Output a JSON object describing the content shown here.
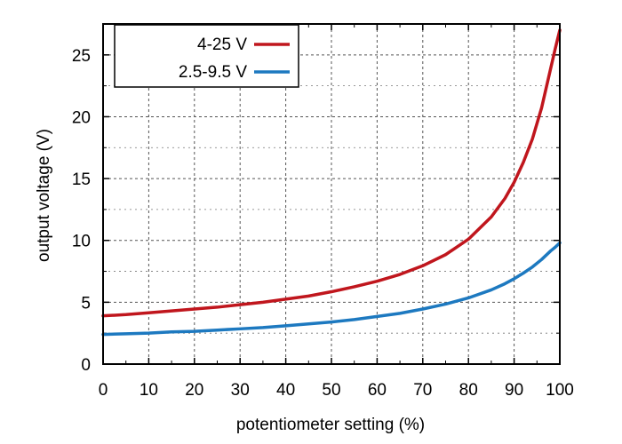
{
  "chart_data": {
    "type": "line",
    "xlabel": "potentiometer setting (%)",
    "ylabel": "output voltage (V)",
    "xlim": [
      0,
      100
    ],
    "ylim": [
      0,
      27.5
    ],
    "xticks": [
      0,
      10,
      20,
      30,
      40,
      50,
      60,
      70,
      80,
      90,
      100
    ],
    "yticks": [
      0,
      5,
      10,
      15,
      20,
      25
    ],
    "minor_grid": true,
    "grid": "dashed",
    "legend_position": "top-left",
    "x": [
      0,
      5,
      10,
      15,
      20,
      25,
      30,
      35,
      40,
      45,
      50,
      55,
      60,
      65,
      70,
      75,
      80,
      85,
      88,
      90,
      92,
      94,
      96,
      97,
      98,
      99,
      100
    ],
    "series": [
      {
        "name": "4-25 V",
        "color": "#c0161d",
        "values": [
          3.9,
          4.0,
          4.15,
          4.3,
          4.45,
          4.6,
          4.8,
          5.0,
          5.25,
          5.5,
          5.85,
          6.25,
          6.7,
          7.25,
          7.95,
          8.85,
          10.1,
          11.9,
          13.4,
          14.7,
          16.3,
          18.2,
          20.7,
          22.3,
          23.9,
          25.5,
          27.0
        ]
      },
      {
        "name": "2.5-9.5 V",
        "color": "#1d79c0",
        "values": [
          2.4,
          2.45,
          2.5,
          2.6,
          2.65,
          2.75,
          2.85,
          2.95,
          3.1,
          3.25,
          3.4,
          3.6,
          3.85,
          4.1,
          4.45,
          4.85,
          5.35,
          6.0,
          6.5,
          6.9,
          7.35,
          7.85,
          8.45,
          8.8,
          9.15,
          9.45,
          9.8
        ]
      }
    ]
  }
}
